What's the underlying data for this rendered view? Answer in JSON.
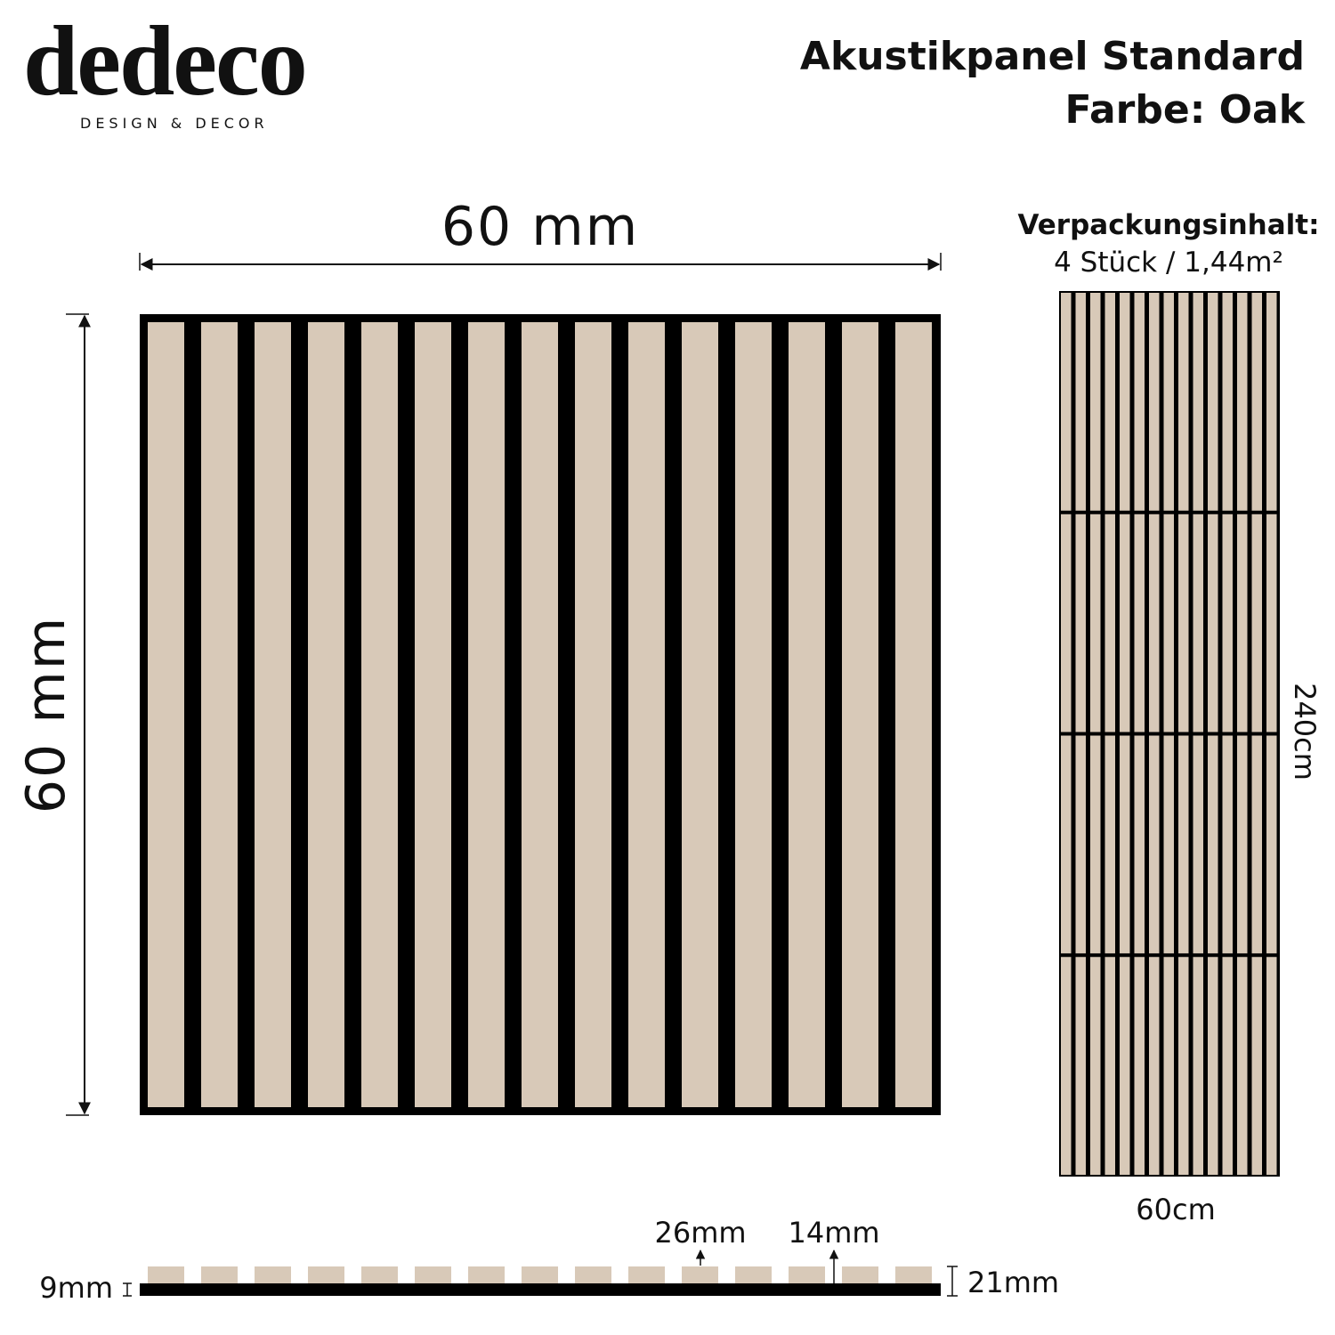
{
  "brand": {
    "logo": "dedeco",
    "tagline": "DESIGN & DECOR"
  },
  "header": {
    "title": "Akustikpanel Standard",
    "color": "Farbe: Oak"
  },
  "panel": {
    "width_label": "60 mm",
    "height_label": "60 mm"
  },
  "package": {
    "heading": "Verpackungsinhalt:",
    "content": "4 Stück / 1,44m²",
    "height_label": "240cm",
    "width_label": "60cm"
  },
  "profile": {
    "slat_width": "26mm",
    "gap_width": "14mm",
    "base_thickness": "9mm",
    "total_thickness": "21mm"
  }
}
